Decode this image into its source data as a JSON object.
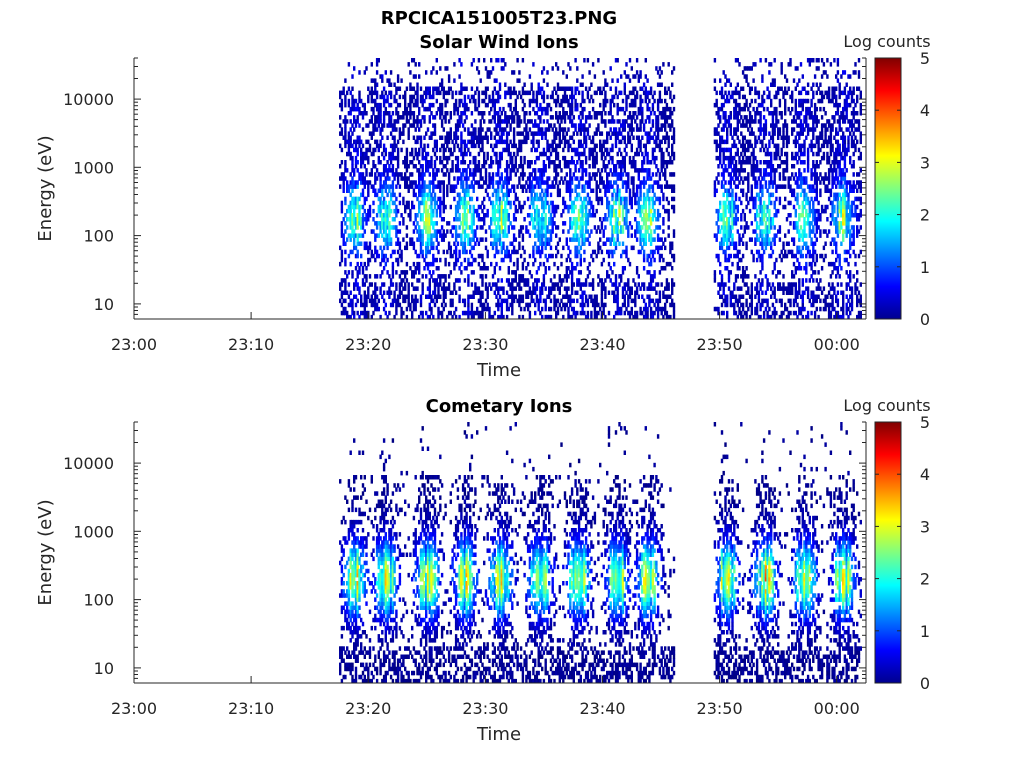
{
  "figure": {
    "title": "RPCICA151005T23.PNG"
  },
  "chart_data": [
    {
      "type": "heatmap",
      "title": "Solar Wind Ions",
      "xlabel": "Time",
      "ylabel": "Energy (eV)",
      "x_tick_labels": [
        "23:00",
        "23:10",
        "23:20",
        "23:30",
        "23:40",
        "23:50",
        "00:00"
      ],
      "x_range_minutes": [
        0,
        62.5
      ],
      "y_tick_values": [
        10,
        100,
        1000,
        10000
      ],
      "y_tick_labels": [
        "10",
        "100",
        "1000",
        "10000"
      ],
      "y_scale": "log",
      "y_range": [
        6,
        40000
      ],
      "colorbar": {
        "label": "Log counts",
        "range": [
          0,
          5
        ],
        "tick_labels": [
          "0",
          "1",
          "2",
          "3",
          "4",
          "5"
        ],
        "colormap": "jet"
      },
      "data_segments_minutes": [
        [
          17.5,
          46.0
        ],
        [
          49.5,
          62.0
        ]
      ],
      "burst_centers_minutes": [
        18.8,
        21.4,
        25.0,
        28.2,
        31.2,
        34.6,
        37.9,
        41.2,
        43.8,
        50.5,
        53.8,
        57.2,
        60.5
      ],
      "peak_energy_ev": 180,
      "peak_log_counts": 2.2
    },
    {
      "type": "heatmap",
      "title": "Cometary Ions",
      "xlabel": "Time",
      "ylabel": "Energy (eV)",
      "x_tick_labels": [
        "23:00",
        "23:10",
        "23:20",
        "23:30",
        "23:40",
        "23:50",
        "00:00"
      ],
      "x_range_minutes": [
        0,
        62.5
      ],
      "y_tick_values": [
        10,
        100,
        1000,
        10000
      ],
      "y_tick_labels": [
        "10",
        "100",
        "1000",
        "10000"
      ],
      "y_scale": "log",
      "y_range": [
        6,
        40000
      ],
      "colorbar": {
        "label": "Log counts",
        "range": [
          0,
          5
        ],
        "tick_labels": [
          "0",
          "1",
          "2",
          "3",
          "4",
          "5"
        ],
        "colormap": "jet"
      },
      "data_segments_minutes": [
        [
          17.5,
          46.0
        ],
        [
          49.5,
          62.0
        ]
      ],
      "burst_centers_minutes": [
        18.8,
        21.4,
        25.0,
        28.2,
        31.2,
        34.6,
        37.9,
        41.2,
        43.8,
        50.5,
        53.8,
        57.2,
        60.5
      ],
      "peak_energy_ev": 200,
      "peak_log_counts": 2.8
    }
  ]
}
